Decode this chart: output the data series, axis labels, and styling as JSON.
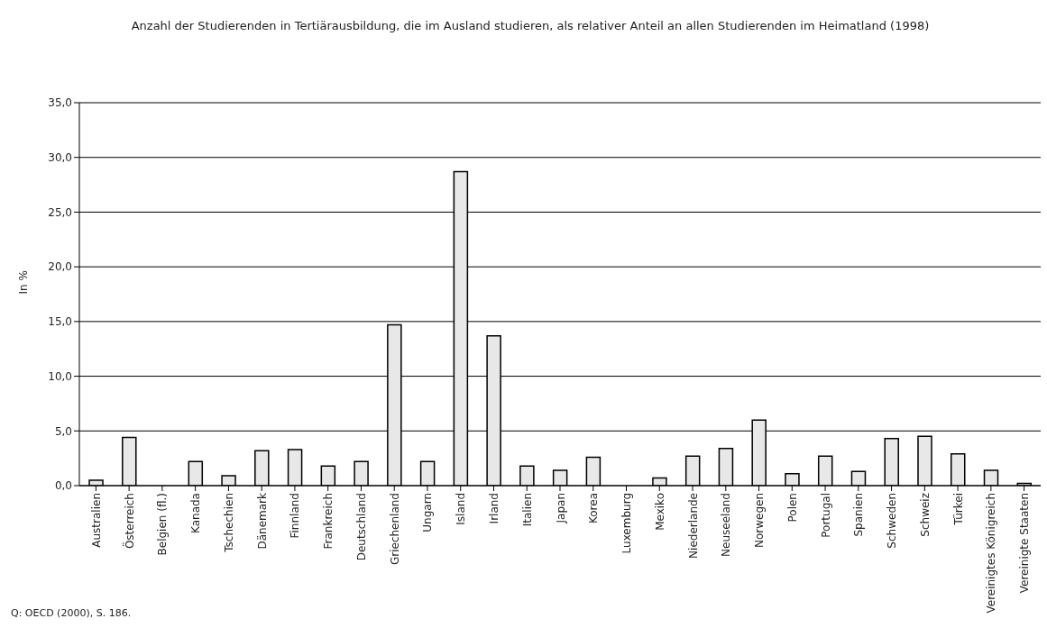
{
  "chart_data": {
    "type": "bar",
    "title": "Anzahl der Studierenden in Tertiärausbildung, die im Ausland studieren, als relativer Anteil an allen Studierenden im Heimatland (1998)",
    "ylabel": "In %",
    "categories": [
      "Australien",
      "Österreich",
      "Belgien (fl.)",
      "Kanada",
      "Tschechien",
      "Dänemark",
      "Finnland",
      "Frankreich",
      "Deutschland",
      "Griechenland",
      "Ungarn",
      "Island",
      "Irland",
      "Italien",
      "Japan",
      "Korea",
      "Luxemburg",
      "Mexiko",
      "Niederlande",
      "Neuseeland",
      "Norwegen",
      "Polen",
      "Portugal",
      "Spanien",
      "Schweden",
      "Schweiz",
      "Türkei",
      "Vereinigtes Königreich",
      "Vereinigte Staaten"
    ],
    "values": [
      0.5,
      4.4,
      null,
      2.2,
      0.9,
      3.2,
      3.3,
      1.8,
      2.2,
      14.7,
      2.2,
      28.7,
      13.7,
      1.8,
      1.4,
      2.6,
      null,
      0.7,
      2.7,
      3.4,
      6.0,
      1.1,
      2.7,
      1.3,
      4.3,
      4.5,
      2.9,
      1.4,
      0.2
    ],
    "color": "#e8e8e8",
    "ylim": [
      0,
      35
    ],
    "yticks": [
      {
        "value": 0,
        "label": "0,0"
      },
      {
        "value": 5,
        "label": "5,0"
      },
      {
        "value": 10,
        "label": "10,0"
      },
      {
        "value": 15,
        "label": "15,0"
      },
      {
        "value": 20,
        "label": "20,0"
      },
      {
        "value": 25,
        "label": "25,0"
      },
      {
        "value": 30,
        "label": "30,0"
      },
      {
        "value": 35,
        "label": "35,0"
      }
    ],
    "grid": "y",
    "legend": false,
    "annotations": [
      "Q: OECD (2000), S. 186."
    ]
  }
}
